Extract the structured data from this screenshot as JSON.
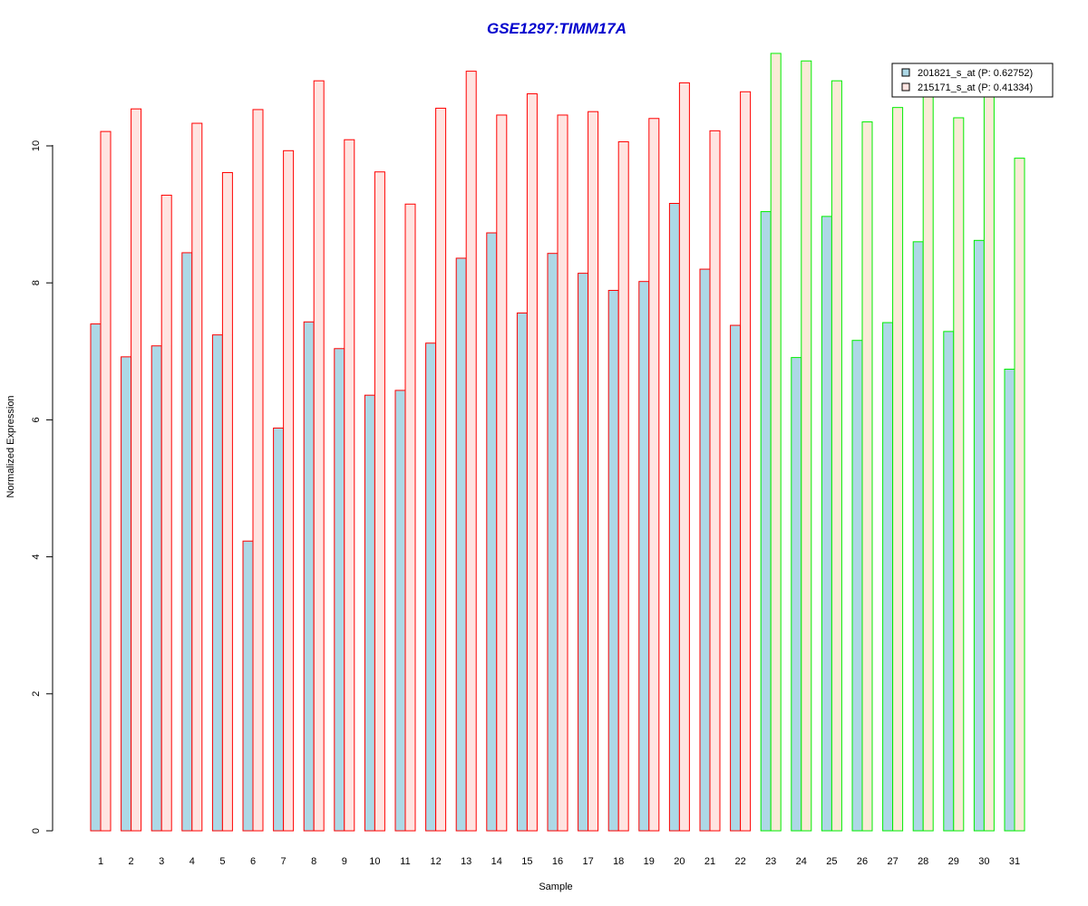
{
  "chart_data": {
    "type": "bar",
    "title": "GSE1297:TIMM17A",
    "xlabel": "Sample",
    "ylabel": "Normalized Expression",
    "categories": [
      "1",
      "2",
      "3",
      "4",
      "5",
      "6",
      "7",
      "8",
      "9",
      "10",
      "11",
      "12",
      "13",
      "14",
      "15",
      "16",
      "17",
      "18",
      "19",
      "20",
      "21",
      "22",
      "23",
      "24",
      "25",
      "26",
      "27",
      "28",
      "29",
      "30",
      "31"
    ],
    "yticks": [
      "0",
      "2",
      "4",
      "6",
      "8",
      "10"
    ],
    "ylim": [
      0,
      11.4
    ],
    "grid": false,
    "legend_position": "top-right",
    "series": [
      {
        "name": "201821_s_at (P: 0.62752)",
        "fill": "#add8e6",
        "values": [
          7.4,
          6.92,
          7.08,
          8.44,
          7.24,
          4.23,
          5.88,
          7.43,
          7.04,
          6.36,
          6.43,
          7.12,
          8.36,
          8.73,
          7.56,
          8.43,
          8.14,
          7.89,
          8.02,
          9.16,
          8.2,
          7.38,
          9.04,
          6.91,
          8.97,
          7.16,
          7.42,
          8.6,
          7.29,
          8.62,
          6.74
        ]
      },
      {
        "name": "215171_s_at (P: 0.41334)",
        "fill_group1": "#ffe4e1",
        "fill_group2": "#faebd7",
        "values": [
          10.21,
          10.54,
          9.28,
          10.33,
          9.61,
          10.53,
          9.93,
          10.95,
          10.09,
          9.62,
          9.15,
          10.55,
          11.09,
          10.45,
          10.76,
          10.45,
          10.5,
          10.06,
          10.4,
          10.92,
          10.22,
          10.79,
          11.35,
          11.24,
          10.95,
          10.35,
          10.56,
          10.74,
          10.41,
          10.72,
          9.82
        ]
      }
    ],
    "group_colors": {
      "group1_border": "#ff0000",
      "group2_border": "#00ee00",
      "title_color": "#0000cd"
    },
    "group1_count": 22
  }
}
